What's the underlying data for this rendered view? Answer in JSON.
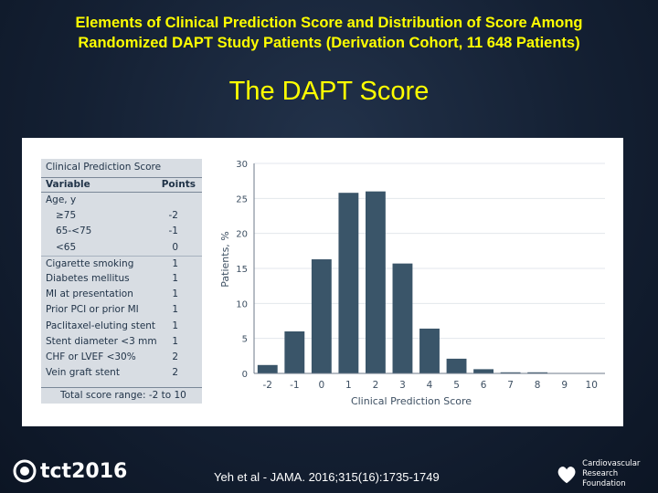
{
  "slide": {
    "title_line1": "Elements of Clinical Prediction Score and Distribution of Score Among",
    "title_line2": "Randomized DAPT Study Patients (Derivation Cohort, 11 648 Patients)",
    "subtitle": "The DAPT Score",
    "citation": "Yeh et al - JAMA. 2016;315(16):1735-1749",
    "logo_text": "tct2016",
    "org_line1": "Cardiovascular",
    "org_line2": "Research Foundation"
  },
  "score_table": {
    "title": "Clinical Prediction Score",
    "col_variable": "Variable",
    "col_points": "Points",
    "rows": [
      {
        "label": "Age, y",
        "points": ""
      },
      {
        "label": "≥75",
        "points": "-2"
      },
      {
        "label": "65-<75",
        "points": "-1"
      },
      {
        "label": "<65",
        "points": "0"
      },
      {
        "label": "Cigarette smoking",
        "points": "1"
      },
      {
        "label": "Diabetes mellitus",
        "points": "1"
      },
      {
        "label": "MI at presentation",
        "points": "1"
      },
      {
        "label": "Prior PCI or prior MI",
        "points": "1"
      },
      {
        "label": "Paclitaxel-eluting stent",
        "points": "1"
      },
      {
        "label": "Stent diameter <3 mm",
        "points": "1"
      },
      {
        "label": "CHF or LVEF <30%",
        "points": "2"
      },
      {
        "label": "Vein graft stent",
        "points": "2"
      }
    ],
    "total": "Total score range: -2 to 10"
  },
  "chart_data": {
    "type": "bar",
    "title": "",
    "xlabel": "Clinical Prediction Score",
    "ylabel": "Patients, %",
    "categories": [
      "-2",
      "-1",
      "0",
      "1",
      "2",
      "3",
      "4",
      "5",
      "6",
      "7",
      "8",
      "9",
      "10"
    ],
    "values": [
      1.2,
      6.0,
      16.3,
      25.8,
      26.0,
      15.7,
      6.4,
      2.1,
      0.6,
      0.15,
      0.1,
      0,
      0
    ],
    "ylim": [
      0,
      30
    ],
    "yticks": [
      0,
      5,
      10,
      15,
      20,
      25,
      30
    ],
    "bar_color": "#3a5569"
  }
}
